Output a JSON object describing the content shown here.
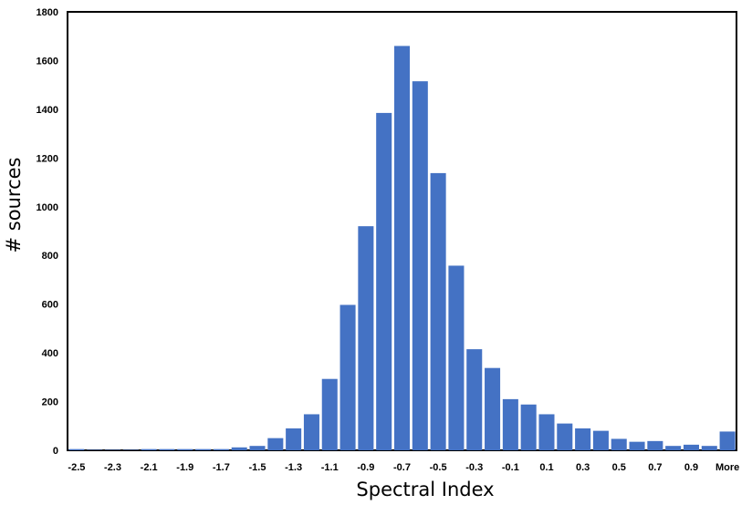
{
  "chart_data": {
    "type": "bar",
    "xlabel": "Spectral Index",
    "ylabel": "# sources",
    "ylim": [
      0,
      1800
    ],
    "yticks": [
      0,
      200,
      400,
      600,
      800,
      1000,
      1200,
      1400,
      1600,
      1800
    ],
    "categories": [
      "-2.5",
      "-2.4",
      "-2.3",
      "-2.2",
      "-2.1",
      "-2",
      "-1.9",
      "-1.8",
      "-1.7",
      "-1.6",
      "-1.5",
      "-1.4",
      "-1.3",
      "-1.2",
      "-1.1",
      "-1",
      "-0.9",
      "-0.8",
      "-0.7",
      "-0.6",
      "-0.5",
      "-0.4",
      "-0.3",
      "-0.2",
      "-0.1",
      "0",
      "0.1",
      "0.2",
      "0.3",
      "0.4",
      "0.5",
      "0.6",
      "0.7",
      "0.8",
      "0.9",
      "1",
      "More"
    ],
    "xtick_labels": [
      "-2.5",
      "",
      "-2.3",
      "",
      "-2.1",
      "",
      "-1.9",
      "",
      "-1.7",
      "",
      "-1.5",
      "",
      "-1.3",
      "",
      "-1.1",
      "",
      "-0.9",
      "",
      "-0.7",
      "",
      "-0.5",
      "",
      "-0.3",
      "",
      "-0.1",
      "",
      "0.1",
      "",
      "0.3",
      "",
      "0.5",
      "",
      "0.7",
      "",
      "0.9",
      "",
      "More"
    ],
    "values": [
      5,
      2,
      2,
      2,
      5,
      5,
      5,
      5,
      5,
      12,
      18,
      50,
      90,
      148,
      293,
      597,
      920,
      1385,
      1660,
      1515,
      1138,
      758,
      415,
      338,
      210,
      188,
      148,
      110,
      90,
      80,
      47,
      35,
      38,
      18,
      23,
      18,
      77
    ],
    "bar_color": "#4472c4",
    "grid": false,
    "legend": "none"
  }
}
